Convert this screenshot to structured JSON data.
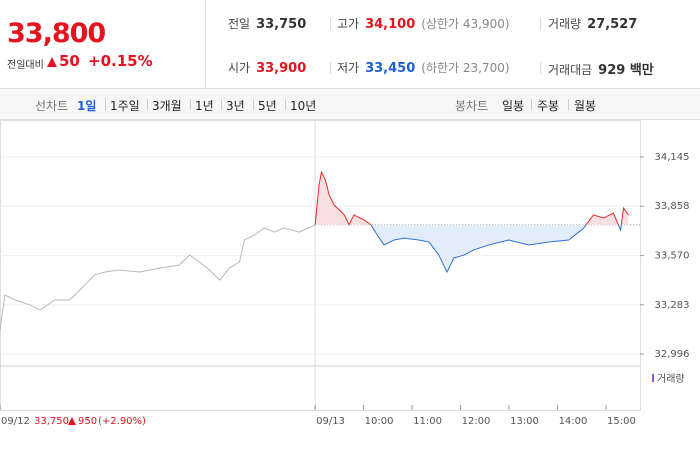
{
  "header": {
    "price": "33,800",
    "change_label": "전일대비",
    "change": "50",
    "change_rate": "+0.15%",
    "stats": [
      [
        {
          "label": "전일",
          "value": "33,750"
        },
        {
          "label": "고가",
          "value": "34,100",
          "note": "(상한가 43,900)"
        },
        {
          "label": "거래량",
          "value": "27,527"
        }
      ],
      [
        {
          "label": "시가",
          "value": "33,900"
        },
        {
          "label": "저가",
          "value": "33,450",
          "note": "(하한가 23,700)"
        },
        {
          "label": "거래대금",
          "value": "929 백만"
        }
      ]
    ]
  },
  "toolbar": {
    "line_label": "선차트",
    "line_ranges": [
      "1일",
      "1주일",
      "3개월",
      "1년",
      "3년",
      "5년",
      "10년"
    ],
    "active": 0,
    "candle_label": "봉차트",
    "candle_ranges": [
      "일봉",
      "주봉",
      "월봉"
    ]
  },
  "chart_data": {
    "type": "line",
    "xlim": [
      0,
      13.2
    ],
    "ylim": [
      32926,
      34349
    ],
    "xticks": [
      {
        "value": 0,
        "label": "09/12"
      },
      {
        "value": 6.5,
        "label": "09/13"
      },
      {
        "value": 7.5,
        "label": "10:00"
      },
      {
        "value": 8.5,
        "label": "11:00"
      },
      {
        "value": 9.5,
        "label": "12:00"
      },
      {
        "value": 10.5,
        "label": "13:00"
      },
      {
        "value": 11.5,
        "label": "14:00"
      },
      {
        "value": 12.5,
        "label": "15:00"
      }
    ],
    "yticks": [
      {
        "value": 32996,
        "label": "32,996"
      },
      {
        "value": 33283,
        "label": "33,283"
      },
      {
        "value": 33570,
        "label": "33,570"
      },
      {
        "value": 33858,
        "label": "33,858"
      },
      {
        "value": 34145,
        "label": "34,145"
      }
    ],
    "baseline": 33750,
    "up_color": "#e8282b",
    "down_color": "#2f6fd6",
    "up_fill": "#fbe0e1",
    "down_fill": "#e3edfa",
    "series": [
      {
        "color": "#b8b8b8",
        "x": [
          0,
          0.1,
          0.31,
          0.62,
          0.82,
          1.13,
          1.44,
          1.65,
          1.95,
          2.16,
          2.47,
          2.88,
          3.29,
          3.7,
          3.91,
          4.12,
          4.32,
          4.53,
          4.73,
          4.94,
          5.04,
          5.25,
          5.45,
          5.66,
          5.86,
          6.17,
          6.5
        ],
        "values": [
          33136,
          33340,
          33311,
          33282,
          33252,
          33311,
          33311,
          33369,
          33457,
          33474,
          33486,
          33474,
          33497,
          33515,
          33573,
          33532,
          33486,
          33427,
          33497,
          33532,
          33661,
          33690,
          33731,
          33707,
          33731,
          33707,
          33748
        ]
      },
      {
        "split": true,
        "x": [
          6.5,
          6.58,
          6.63,
          6.71,
          6.79,
          6.89,
          7.0,
          7.1,
          7.2,
          7.3,
          7.51,
          7.65,
          7.78,
          7.92,
          8.13,
          8.33,
          8.64,
          8.85,
          9.05,
          9.22,
          9.36,
          9.57,
          9.77,
          10.08,
          10.49,
          10.91,
          11.32,
          11.73,
          12.04,
          12.24,
          12.45,
          12.65,
          12.8,
          12.86,
          12.96
        ],
        "values": [
          33750,
          33982,
          34057,
          34011,
          33923,
          33865,
          33836,
          33807,
          33750,
          33807,
          33777,
          33750,
          33690,
          33632,
          33661,
          33672,
          33661,
          33649,
          33573,
          33474,
          33556,
          33573,
          33603,
          33632,
          33661,
          33632,
          33649,
          33661,
          33731,
          33807,
          33789,
          33818,
          33719,
          33847,
          33807
        ]
      }
    ],
    "volume_label": "거래량",
    "prev_summary": {
      "close": "33,750",
      "change": "950",
      "rate": "(+2.90%)"
    }
  }
}
